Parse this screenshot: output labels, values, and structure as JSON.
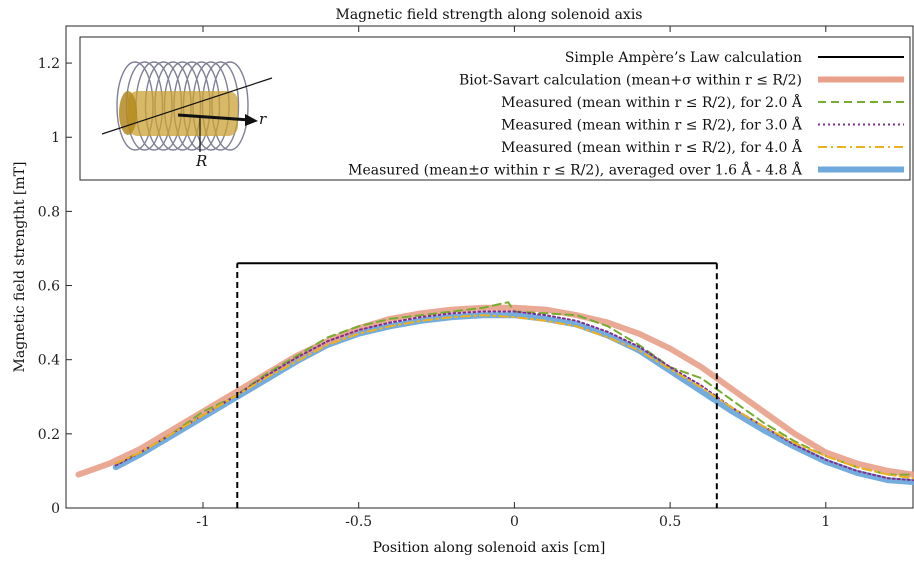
{
  "chart_data": {
    "type": "line",
    "title": "Magnetic field strength along solenoid axis",
    "xlabel": "Position along solenoid axis [cm]",
    "ylabel": "Magnetic field strengtht [mT]",
    "xlim": [
      -1.44,
      1.28
    ],
    "ylim": [
      0,
      1.3
    ],
    "xticks": [
      -1,
      -0.5,
      0,
      0.5,
      1
    ],
    "xtick_labels": [
      "-1",
      "-0.5",
      "0",
      "0.5",
      "1"
    ],
    "yticks": [
      0,
      0.2,
      0.4,
      0.6,
      0.8,
      1,
      1.2
    ],
    "ytick_labels": [
      "0",
      "0.2",
      "0.4",
      "0.6",
      "0.8",
      "1",
      "1.2"
    ],
    "grid": false,
    "legend_position": "top",
    "inset": {
      "labels": [
        "r",
        "R"
      ]
    },
    "series": [
      {
        "name": "Simple Ampère’s Law calculation",
        "color": "#000000",
        "style": "solid",
        "x": [
          -0.89,
          -0.89,
          0.65,
          0.65
        ],
        "y": [
          0,
          0.66,
          0.66,
          0
        ]
      },
      {
        "name": "Biot-Savart calculation (mean+σ within r ≤ R/2)",
        "color": "#e8a08a",
        "style": "band",
        "x": [
          -1.4,
          -1.3,
          -1.2,
          -1.1,
          -1.0,
          -0.9,
          -0.8,
          -0.7,
          -0.6,
          -0.5,
          -0.4,
          -0.3,
          -0.2,
          -0.1,
          0.0,
          0.1,
          0.2,
          0.3,
          0.4,
          0.5,
          0.6,
          0.7,
          0.8,
          0.9,
          1.0,
          1.1,
          1.2,
          1.28
        ],
        "y": [
          0.09,
          0.12,
          0.16,
          0.21,
          0.26,
          0.31,
          0.36,
          0.41,
          0.45,
          0.485,
          0.51,
          0.525,
          0.535,
          0.54,
          0.54,
          0.535,
          0.52,
          0.5,
          0.47,
          0.43,
          0.38,
          0.32,
          0.26,
          0.2,
          0.15,
          0.12,
          0.1,
          0.09
        ]
      },
      {
        "name": "Measured (mean within r ≤ R/2), for 2.0 Å",
        "color": "#77ac30",
        "style": "dashed",
        "x": [
          -1.28,
          -1.2,
          -1.1,
          -1.0,
          -0.9,
          -0.8,
          -0.7,
          -0.6,
          -0.5,
          -0.4,
          -0.3,
          -0.2,
          -0.1,
          -0.02,
          0.0,
          0.1,
          0.2,
          0.3,
          0.4,
          0.5,
          0.6,
          0.7,
          0.8,
          0.9,
          1.0,
          1.1,
          1.2,
          1.28
        ],
        "y": [
          0.12,
          0.15,
          0.2,
          0.26,
          0.3,
          0.36,
          0.41,
          0.46,
          0.49,
          0.51,
          0.52,
          0.53,
          0.54,
          0.555,
          0.53,
          0.525,
          0.52,
          0.49,
          0.44,
          0.38,
          0.35,
          0.29,
          0.23,
          0.18,
          0.14,
          0.11,
          0.09,
          0.09
        ]
      },
      {
        "name": "Measured (mean within r ≤ R/2), for 3.0 Å",
        "color": "#7e2f8e",
        "style": "dotted",
        "x": [
          -1.28,
          -1.2,
          -1.1,
          -1.0,
          -0.9,
          -0.8,
          -0.7,
          -0.6,
          -0.5,
          -0.4,
          -0.3,
          -0.2,
          -0.1,
          0.0,
          0.1,
          0.2,
          0.3,
          0.4,
          0.5,
          0.6,
          0.7,
          0.8,
          0.9,
          1.0,
          1.1,
          1.2,
          1.28
        ],
        "y": [
          0.115,
          0.15,
          0.2,
          0.25,
          0.3,
          0.355,
          0.405,
          0.45,
          0.48,
          0.5,
          0.515,
          0.525,
          0.53,
          0.53,
          0.52,
          0.505,
          0.475,
          0.435,
          0.38,
          0.33,
          0.27,
          0.22,
          0.17,
          0.13,
          0.1,
          0.08,
          0.075
        ]
      },
      {
        "name": "Measured (mean within r ≤ R/2), for 4.0 Å",
        "color": "#edb120",
        "style": "dashdot",
        "x": [
          -1.28,
          -1.2,
          -1.1,
          -1.0,
          -0.9,
          -0.8,
          -0.7,
          -0.6,
          -0.5,
          -0.4,
          -0.3,
          -0.2,
          -0.1,
          0.0,
          0.1,
          0.2,
          0.3,
          0.4,
          0.5,
          0.6,
          0.7,
          0.8,
          0.9,
          1.0,
          1.1,
          1.2,
          1.28
        ],
        "y": [
          0.12,
          0.15,
          0.2,
          0.25,
          0.3,
          0.35,
          0.395,
          0.44,
          0.47,
          0.49,
          0.505,
          0.515,
          0.52,
          0.515,
          0.505,
          0.49,
          0.46,
          0.425,
          0.375,
          0.325,
          0.27,
          0.22,
          0.175,
          0.14,
          0.11,
          0.09,
          0.08
        ]
      },
      {
        "name": "Measured (mean±σ within r ≤ R/2), averaged over 1.6 Å - 4.8 Å",
        "color": "#6ea8dc",
        "style": "band",
        "x": [
          -1.28,
          -1.2,
          -1.1,
          -1.0,
          -0.9,
          -0.8,
          -0.7,
          -0.6,
          -0.5,
          -0.4,
          -0.3,
          -0.2,
          -0.1,
          0.0,
          0.1,
          0.2,
          0.3,
          0.4,
          0.5,
          0.6,
          0.7,
          0.8,
          0.9,
          1.0,
          1.1,
          1.2,
          1.28
        ],
        "y": [
          0.11,
          0.145,
          0.195,
          0.245,
          0.295,
          0.345,
          0.395,
          0.44,
          0.47,
          0.49,
          0.505,
          0.515,
          0.52,
          0.52,
          0.51,
          0.495,
          0.465,
          0.425,
          0.37,
          0.315,
          0.26,
          0.21,
          0.165,
          0.125,
          0.095,
          0.075,
          0.07
        ]
      }
    ]
  }
}
